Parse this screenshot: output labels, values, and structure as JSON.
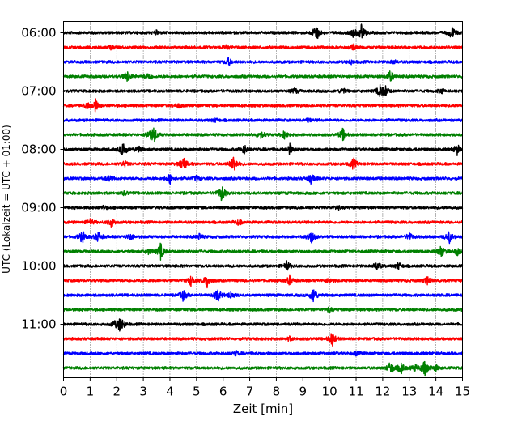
{
  "chart_data": {
    "type": "line",
    "title": "",
    "xlabel": "Zeit  [min]",
    "ylabel": "UTC (Lokalzeit = UTC + 01:00)",
    "xlim": [
      0,
      15
    ],
    "x_ticks": [
      "0",
      "1",
      "2",
      "3",
      "4",
      "5",
      "6",
      "7",
      "8",
      "9",
      "10",
      "11",
      "12",
      "13",
      "14",
      "15"
    ],
    "y_tick_labels": [
      "06:00",
      "07:00",
      "08:00",
      "09:00",
      "10:00",
      "11:00"
    ],
    "grid": "vertical dotted at each minute",
    "trace_interval_min": 15,
    "colors_cycle": [
      "#000000",
      "#ff0000",
      "#0000ff",
      "#008000"
    ],
    "traces": [
      {
        "start": "06:00",
        "color": "#000000",
        "events": [
          [
            9.5,
            1.0
          ],
          [
            11.2,
            0.9
          ],
          [
            14.6,
            0.7
          ],
          [
            10.9,
            0.4
          ],
          [
            3.5,
            0.2
          ]
        ]
      },
      {
        "start": "06:15",
        "color": "#ff0000",
        "events": [
          [
            10.9,
            0.3
          ],
          [
            1.8,
            0.2
          ],
          [
            6.1,
            0.2
          ]
        ]
      },
      {
        "start": "06:30",
        "color": "#0000ff",
        "events": [
          [
            6.2,
            0.4
          ],
          [
            10.8,
            0.2
          ],
          [
            12.4,
            0.2
          ]
        ]
      },
      {
        "start": "06:45",
        "color": "#008000",
        "events": [
          [
            2.4,
            0.6
          ],
          [
            3.2,
            0.4
          ],
          [
            12.3,
            0.7
          ]
        ]
      },
      {
        "start": "07:00",
        "color": "#000000",
        "events": [
          [
            11.9,
            0.6
          ],
          [
            12.1,
            0.5
          ],
          [
            8.7,
            0.3
          ],
          [
            10.5,
            0.3
          ],
          [
            14.2,
            0.3
          ]
        ]
      },
      {
        "start": "07:15",
        "color": "#ff0000",
        "events": [
          [
            1.2,
            0.7
          ],
          [
            0.9,
            0.3
          ],
          [
            4.3,
            0.2
          ]
        ]
      },
      {
        "start": "07:30",
        "color": "#0000ff",
        "events": [
          [
            9.2,
            0.2
          ],
          [
            5.7,
            0.2
          ]
        ]
      },
      {
        "start": "07:45",
        "color": "#008000",
        "events": [
          [
            3.4,
            0.9
          ],
          [
            3.2,
            0.4
          ],
          [
            7.4,
            0.5
          ],
          [
            8.3,
            0.4
          ],
          [
            10.5,
            0.7
          ]
        ]
      },
      {
        "start": "08:00",
        "color": "#000000",
        "events": [
          [
            2.25,
            1.0
          ],
          [
            2.8,
            0.4
          ],
          [
            6.8,
            0.5
          ],
          [
            8.5,
            0.6
          ],
          [
            14.8,
            0.6
          ]
        ]
      },
      {
        "start": "08:15",
        "color": "#ff0000",
        "events": [
          [
            6.4,
            1.0
          ],
          [
            4.5,
            0.8
          ],
          [
            10.9,
            0.6
          ],
          [
            2.3,
            0.3
          ]
        ]
      },
      {
        "start": "08:30",
        "color": "#0000ff",
        "events": [
          [
            4.0,
            0.6
          ],
          [
            9.3,
            0.6
          ],
          [
            1.7,
            0.3
          ],
          [
            5.0,
            0.3
          ]
        ]
      },
      {
        "start": "08:45",
        "color": "#008000",
        "events": [
          [
            5.95,
            0.9
          ],
          [
            2.3,
            0.2
          ]
        ]
      },
      {
        "start": "09:00",
        "color": "#000000",
        "events": [
          [
            1.5,
            0.2
          ],
          [
            10.3,
            0.2
          ]
        ]
      },
      {
        "start": "09:15",
        "color": "#ff0000",
        "events": [
          [
            1.8,
            0.5
          ],
          [
            1.0,
            0.3
          ],
          [
            6.6,
            0.3
          ]
        ]
      },
      {
        "start": "09:30",
        "color": "#0000ff",
        "events": [
          [
            0.7,
            0.7
          ],
          [
            1.3,
            0.6
          ],
          [
            2.5,
            0.4
          ],
          [
            9.3,
            0.8
          ],
          [
            14.5,
            0.7
          ],
          [
            5.1,
            0.3
          ],
          [
            13.0,
            0.4
          ]
        ]
      },
      {
        "start": "09:45",
        "color": "#008000",
        "events": [
          [
            3.65,
            0.9
          ],
          [
            14.2,
            0.6
          ],
          [
            14.8,
            0.4
          ],
          [
            3.2,
            0.3
          ]
        ]
      },
      {
        "start": "10:00",
        "color": "#000000",
        "events": [
          [
            8.4,
            0.5
          ],
          [
            11.8,
            0.5
          ],
          [
            12.6,
            0.4
          ]
        ]
      },
      {
        "start": "10:15",
        "color": "#ff0000",
        "events": [
          [
            5.4,
            0.8
          ],
          [
            4.8,
            0.6
          ],
          [
            8.5,
            0.5
          ],
          [
            13.7,
            0.5
          ],
          [
            10.0,
            0.3
          ]
        ]
      },
      {
        "start": "10:30",
        "color": "#0000ff",
        "events": [
          [
            9.4,
            0.9
          ],
          [
            5.8,
            0.7
          ],
          [
            4.5,
            0.6
          ],
          [
            6.3,
            0.4
          ]
        ]
      },
      {
        "start": "10:45",
        "color": "#008000",
        "events": [
          [
            10.0,
            0.2
          ]
        ]
      },
      {
        "start": "11:00",
        "color": "#000000",
        "events": [
          [
            2.15,
            1.0
          ],
          [
            1.9,
            0.3
          ]
        ]
      },
      {
        "start": "11:15",
        "color": "#ff0000",
        "events": [
          [
            10.1,
            0.8
          ],
          [
            8.5,
            0.2
          ]
        ]
      },
      {
        "start": "11:30",
        "color": "#0000ff",
        "events": [
          [
            6.5,
            0.2
          ],
          [
            11.0,
            0.2
          ]
        ]
      },
      {
        "start": "11:45",
        "color": "#008000",
        "events": [
          [
            13.6,
            1.0
          ],
          [
            12.3,
            0.8
          ],
          [
            12.7,
            0.6
          ],
          [
            13.2,
            0.4
          ],
          [
            14.0,
            0.3
          ]
        ]
      }
    ]
  }
}
